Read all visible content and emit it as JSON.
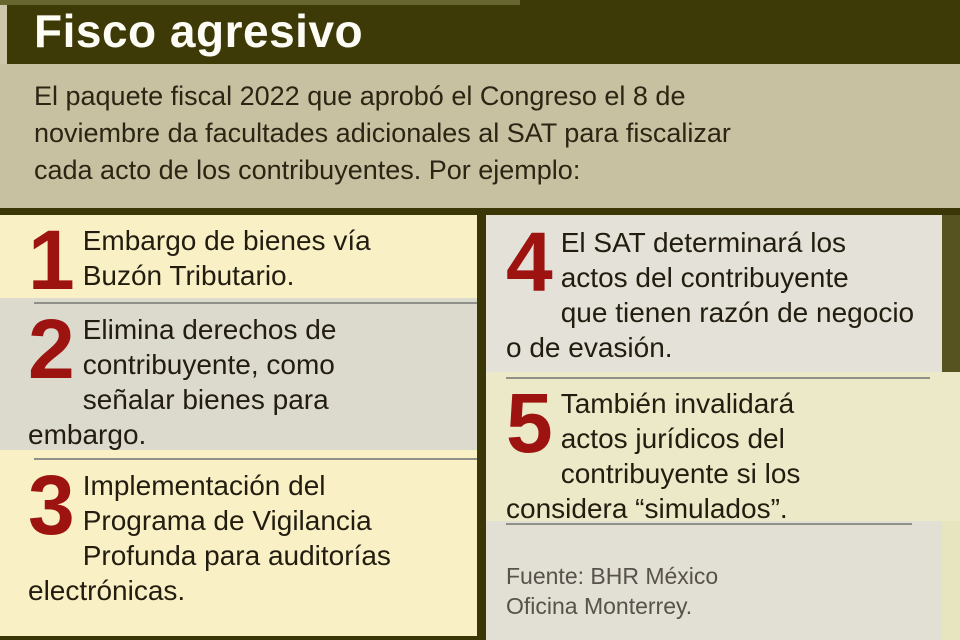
{
  "title": "Fisco agresivo",
  "intro": "El paquete fiscal 2022 que aprobó el Congreso el 8 de\nnoviembre da facultades adicionales al SAT para fiscalizar\ncada acto de los contribuyentes. Por ejemplo:",
  "items": [
    {
      "number": "1",
      "text": "Embargo de bienes vía\nBuzón Tributario."
    },
    {
      "number": "2",
      "text": "Elimina derechos de\ncontribuyente, como\nseñalar bienes para\nembargo."
    },
    {
      "number": "3",
      "text": "Implementación del\nPrograma de Vigilancia\nProfunda para auditorías\nelectrónicas."
    },
    {
      "number": "4",
      "text": "El SAT determinará los\nactos del contribuyente\nque tienen razón de negocio\no de evasión."
    },
    {
      "number": "5",
      "text": "También invalidará\nactos jurídicos del\ncontribuyente si los\nconsidera “simulados”."
    }
  ],
  "source": "Fuente: BHR México\nOficina Monterrey.",
  "colors": {
    "header_bg": "#3e3a07",
    "page_bg": "#3a3606",
    "intro_bg": "#c7c1a2",
    "panel_yellow": "#f9f0c6",
    "panel_gray": "#dcd9cd",
    "panel_gray_right": "#e4e1d8",
    "panel_yellow_right": "#ebe9c8",
    "source_bg": "#e2dfd5",
    "number_red": "#9d1310",
    "title_color": "#fdfdf6",
    "body_text": "#221d0f",
    "rule_gray": "#90908a"
  }
}
